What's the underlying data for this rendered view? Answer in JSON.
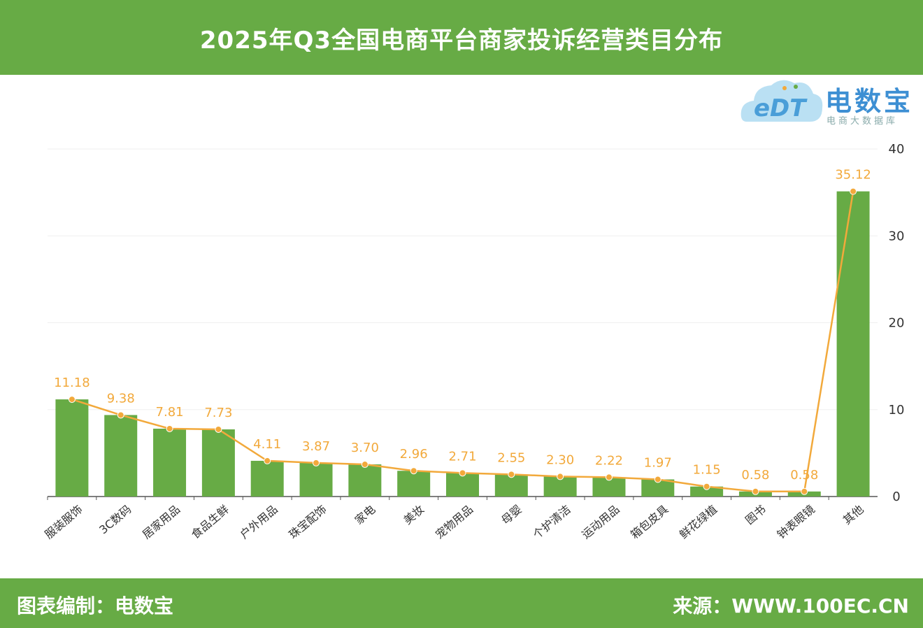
{
  "header": {
    "title": "2025年Q3全国电商平台商家投诉经营类目分布"
  },
  "footer": {
    "left": "图表编制：电数宝",
    "right": "来源：WWW.100EC.CN"
  },
  "logo": {
    "cn": "电数宝",
    "en": "eDT",
    "sub": "电商大数据库"
  },
  "colors": {
    "bar": "#67ab45",
    "line": "#f2a93b",
    "header": "#67ab45"
  },
  "chart_data": {
    "type": "bar",
    "title": "2025年Q3全国电商平台商家投诉经营类目分布",
    "categories": [
      "服装服饰",
      "3C数码",
      "居家用品",
      "食品生鲜",
      "户外用品",
      "珠宝配饰",
      "家电",
      "美妆",
      "宠物用品",
      "母婴",
      "个护清洁",
      "运动用品",
      "箱包皮具",
      "鲜花绿植",
      "图书",
      "钟表眼镜",
      "其他"
    ],
    "values": [
      11.18,
      9.38,
      7.81,
      7.73,
      4.11,
      3.87,
      3.7,
      2.96,
      2.71,
      2.55,
      2.3,
      2.22,
      1.97,
      1.15,
      0.58,
      0.58,
      35.12
    ],
    "value_labels": [
      "11.18",
      "9.38",
      "7.81",
      "7.73",
      "4.11",
      "3.87",
      "3.70",
      "2.96",
      "2.71",
      "2.55",
      "2.30",
      "2.22",
      "1.97",
      "1.15",
      "0.58",
      "0.58",
      "35.12"
    ],
    "yticks": [
      "0",
      "10",
      "20",
      "30",
      "40"
    ],
    "ylim": [
      0,
      40
    ],
    "y_axis_side": "right",
    "overlay_line": true
  }
}
